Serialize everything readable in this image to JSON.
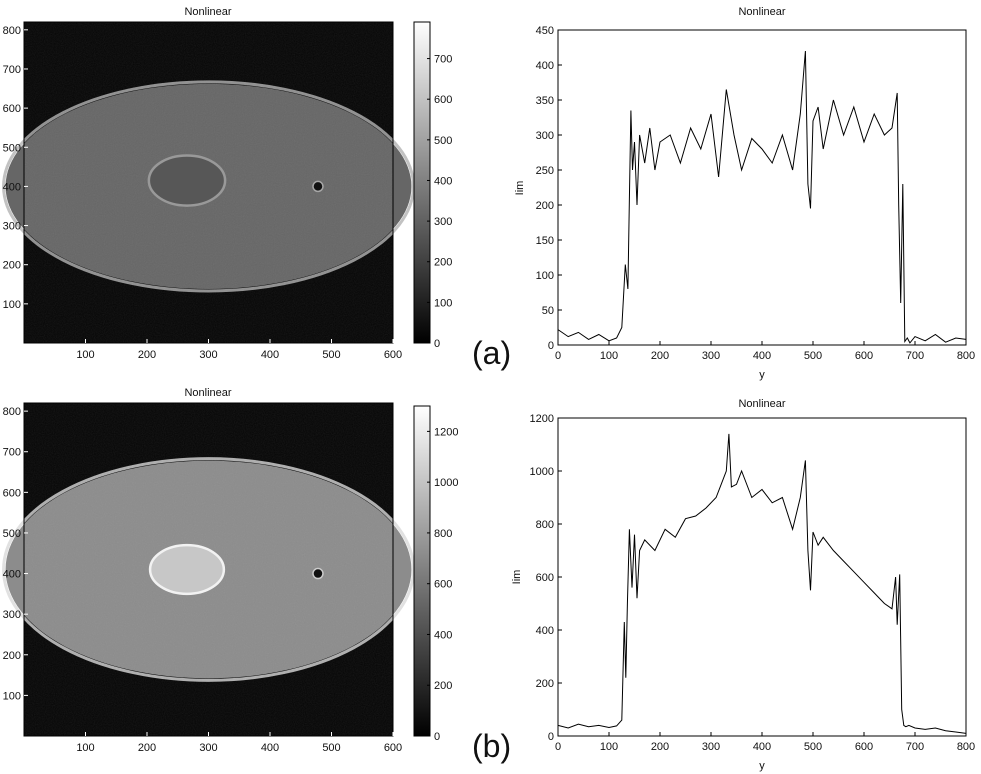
{
  "panels": [
    {
      "label": "(a)",
      "image": {
        "title": "Nonlinear",
        "type": "heatmap",
        "x_ticks": [
          100,
          200,
          300,
          400,
          500,
          600
        ],
        "y_ticks": [
          100,
          200,
          300,
          400,
          500,
          600,
          700,
          800
        ],
        "xlim": [
          0,
          600
        ],
        "ylim": [
          0,
          820
        ],
        "colorbar_ticks": [
          0,
          100,
          200,
          300,
          400,
          500,
          600,
          700
        ],
        "colorbar_range": [
          0,
          790
        ],
        "colormap": "gray",
        "cell_intensity": 0.4,
        "cell_center": [
          300,
          400
        ],
        "cell_radii": [
          330,
          262
        ],
        "nucleus_center": [
          265,
          415
        ],
        "nucleus_radii": [
          62,
          64
        ],
        "nucleus_intensity": 0.34,
        "nucleus_rim_intensity": 0.6
      },
      "chart_data": {
        "type": "line",
        "title": "Nonlinear",
        "xlabel": "y",
        "ylabel": "Iim",
        "xlim": [
          0,
          800
        ],
        "ylim": [
          0,
          450
        ],
        "x_ticks": [
          0,
          100,
          200,
          300,
          400,
          500,
          600,
          700,
          800
        ],
        "y_ticks": [
          0,
          50,
          100,
          150,
          200,
          250,
          300,
          350,
          400,
          450
        ],
        "x": [
          0,
          20,
          40,
          60,
          80,
          100,
          115,
          125,
          132,
          137,
          140,
          143,
          146,
          150,
          155,
          160,
          170,
          180,
          190,
          200,
          220,
          240,
          260,
          280,
          300,
          315,
          330,
          345,
          360,
          380,
          400,
          420,
          440,
          460,
          475,
          485,
          490,
          495,
          500,
          510,
          520,
          540,
          560,
          580,
          600,
          620,
          640,
          655,
          665,
          668,
          672,
          676,
          680,
          685,
          690,
          700,
          720,
          740,
          760,
          780,
          800
        ],
        "values": [
          22,
          12,
          18,
          8,
          15,
          6,
          10,
          25,
          115,
          80,
          210,
          335,
          250,
          290,
          200,
          300,
          260,
          310,
          250,
          290,
          300,
          260,
          310,
          280,
          330,
          240,
          365,
          300,
          250,
          295,
          280,
          260,
          300,
          250,
          330,
          420,
          230,
          195,
          320,
          340,
          280,
          350,
          300,
          340,
          290,
          330,
          300,
          310,
          360,
          200,
          60,
          230,
          5,
          10,
          3,
          12,
          6,
          15,
          4,
          10,
          8
        ]
      }
    },
    {
      "label": "(b)",
      "image": {
        "title": "Nonlinear",
        "type": "heatmap",
        "x_ticks": [
          100,
          200,
          300,
          400,
          500,
          600
        ],
        "y_ticks": [
          100,
          200,
          300,
          400,
          500,
          600,
          700,
          800
        ],
        "xlim": [
          0,
          600
        ],
        "ylim": [
          0,
          820
        ],
        "colorbar_ticks": [
          0,
          200,
          400,
          600,
          800,
          1000,
          1200
        ],
        "colorbar_range": [
          0,
          1300
        ],
        "colormap": "gray",
        "cell_intensity": 0.55,
        "cell_center": [
          300,
          410
        ],
        "cell_radii": [
          330,
          268
        ],
        "nucleus_center": [
          265,
          410
        ],
        "nucleus_radii": [
          60,
          60
        ],
        "nucleus_intensity": 0.78,
        "nucleus_rim_intensity": 0.95
      },
      "chart_data": {
        "type": "line",
        "title": "Nonlinear",
        "xlabel": "y",
        "ylabel": "Iim",
        "xlim": [
          0,
          800
        ],
        "ylim": [
          0,
          1200
        ],
        "x_ticks": [
          0,
          100,
          200,
          300,
          400,
          500,
          600,
          700,
          800
        ],
        "y_ticks": [
          0,
          200,
          400,
          600,
          800,
          1000,
          1200
        ],
        "x": [
          0,
          20,
          40,
          60,
          80,
          100,
          115,
          125,
          130,
          133,
          136,
          140,
          145,
          150,
          155,
          160,
          170,
          190,
          210,
          230,
          250,
          270,
          290,
          310,
          320,
          330,
          335,
          340,
          350,
          360,
          380,
          400,
          420,
          440,
          460,
          475,
          485,
          490,
          495,
          500,
          510,
          520,
          540,
          560,
          580,
          600,
          620,
          640,
          655,
          662,
          665,
          670,
          674,
          678,
          682,
          688,
          700,
          720,
          740,
          760,
          780,
          800
        ],
        "values": [
          40,
          30,
          45,
          35,
          40,
          32,
          38,
          60,
          430,
          220,
          500,
          780,
          560,
          760,
          520,
          700,
          740,
          700,
          780,
          750,
          820,
          830,
          860,
          900,
          950,
          1000,
          1140,
          940,
          950,
          1000,
          900,
          930,
          880,
          900,
          780,
          900,
          1040,
          700,
          550,
          770,
          720,
          750,
          700,
          660,
          620,
          580,
          540,
          500,
          480,
          600,
          420,
          610,
          100,
          40,
          35,
          40,
          30,
          25,
          30,
          20,
          15,
          10
        ]
      }
    }
  ]
}
